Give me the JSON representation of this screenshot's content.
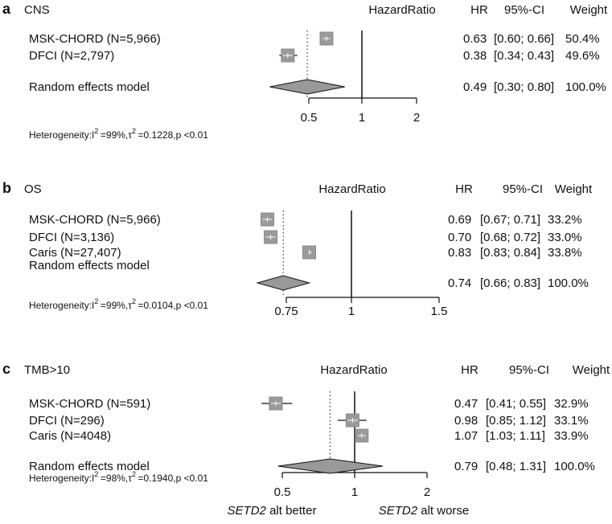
{
  "colors": {
    "box": "#9a9a9a",
    "box_stroke": "#8a8a8a",
    "diamond": "#999999",
    "ink": "#111111",
    "box_mark": "#ffffff"
  },
  "header": {
    "effect_label": "HazardRatio",
    "hr_label": "HR",
    "ci_label": "95%-CI",
    "weight_label": "Weight"
  },
  "footer": {
    "better": "SETD2 alt better",
    "worse": "SETD2 alt worse"
  },
  "chart_data": [
    {
      "type": "forest",
      "panel_label": "a",
      "title": "CNS",
      "scale": "log",
      "xticks": [
        0.5,
        1,
        2
      ],
      "xtick_labels": [
        "0.5",
        "1",
        "2"
      ],
      "null_value": 1,
      "studies": [
        {
          "label": "MSK-CHORD (N=5,966)",
          "hr": 0.63,
          "lower": 0.6,
          "upper": 0.66,
          "hr_text": "0.63",
          "ci_text": "[0.60; 0.66]",
          "weight_text": "50.4%",
          "weight": 50.4
        },
        {
          "label": "DFCI (N=2,797)",
          "hr": 0.38,
          "lower": 0.34,
          "upper": 0.43,
          "hr_text": "0.38",
          "ci_text": "[0.34; 0.43]",
          "weight_text": "49.6%",
          "weight": 49.6
        }
      ],
      "pooled": {
        "label": "Random effects model",
        "hr": 0.49,
        "lower": 0.3,
        "upper": 0.8,
        "hr_text": "0.49",
        "ci_text": "[0.30; 0.80]",
        "weight_text": "100.0%"
      },
      "heterogeneity": {
        "prefix": "Heterogeneity:I",
        "i2": "=99%,τ",
        "tau2": "=0.1228,p <0.01"
      }
    },
    {
      "type": "forest",
      "panel_label": "b",
      "title": "OS",
      "scale": "log",
      "xticks": [
        0.75,
        1,
        1.5
      ],
      "xtick_labels": [
        "0.75",
        "1",
        "1.5"
      ],
      "null_value": 1,
      "studies": [
        {
          "label": "MSK-CHORD (N=5,966)",
          "hr": 0.69,
          "lower": 0.67,
          "upper": 0.71,
          "hr_text": "0.69",
          "ci_text": "[0.67; 0.71]",
          "weight_text": "33.2%",
          "weight": 33.2
        },
        {
          "label": "DFCI (N=3,136)",
          "hr": 0.7,
          "lower": 0.68,
          "upper": 0.72,
          "hr_text": "0.70",
          "ci_text": "[0.68; 0.72]",
          "weight_text": "33.0%",
          "weight": 33.0
        },
        {
          "label": "Caris (N=27,407)",
          "hr": 0.83,
          "lower": 0.83,
          "upper": 0.84,
          "hr_text": "0.83",
          "ci_text": "[0.83; 0.84]",
          "weight_text": "33.8%",
          "weight": 33.8
        }
      ],
      "pooled": {
        "label": "Random effects model",
        "hr": 0.74,
        "lower": 0.66,
        "upper": 0.83,
        "hr_text": "0.74",
        "ci_text": "[0.66; 0.83]",
        "weight_text": "100.0%"
      },
      "heterogeneity": {
        "prefix": "Heterogeneity:I",
        "i2": "=99%,τ",
        "tau2": "=0.0104,p <0.01"
      }
    },
    {
      "type": "forest",
      "panel_label": "c",
      "title": "TMB>10",
      "scale": "log",
      "xticks": [
        0.5,
        1,
        2
      ],
      "xtick_labels": [
        "0.5",
        "1",
        "2"
      ],
      "null_value": 1,
      "studies": [
        {
          "label": "MSK-CHORD (N=591)",
          "hr": 0.47,
          "lower": 0.41,
          "upper": 0.55,
          "hr_text": "0.47",
          "ci_text": "[0.41; 0.55]",
          "weight_text": "32.9%",
          "weight": 32.9
        },
        {
          "label": "DFCI (N=296)",
          "hr": 0.98,
          "lower": 0.85,
          "upper": 1.12,
          "hr_text": "0.98",
          "ci_text": "[0.85; 1.12]",
          "weight_text": "33.1%",
          "weight": 33.1
        },
        {
          "label": "Caris (N=4048)",
          "hr": 1.07,
          "lower": 1.03,
          "upper": 1.11,
          "hr_text": "1.07",
          "ci_text": "[1.03; 1.11]",
          "weight_text": "33.9%",
          "weight": 33.9
        }
      ],
      "pooled": {
        "label": "Random effects model",
        "hr": 0.79,
        "lower": 0.48,
        "upper": 1.31,
        "hr_text": "0.79",
        "ci_text": "[0.48; 1.31]",
        "weight_text": "100.0%"
      },
      "heterogeneity": {
        "prefix": "Heterogeneity:I",
        "i2": "=98%,τ",
        "tau2": "=0.1940,p <0.01"
      }
    }
  ]
}
